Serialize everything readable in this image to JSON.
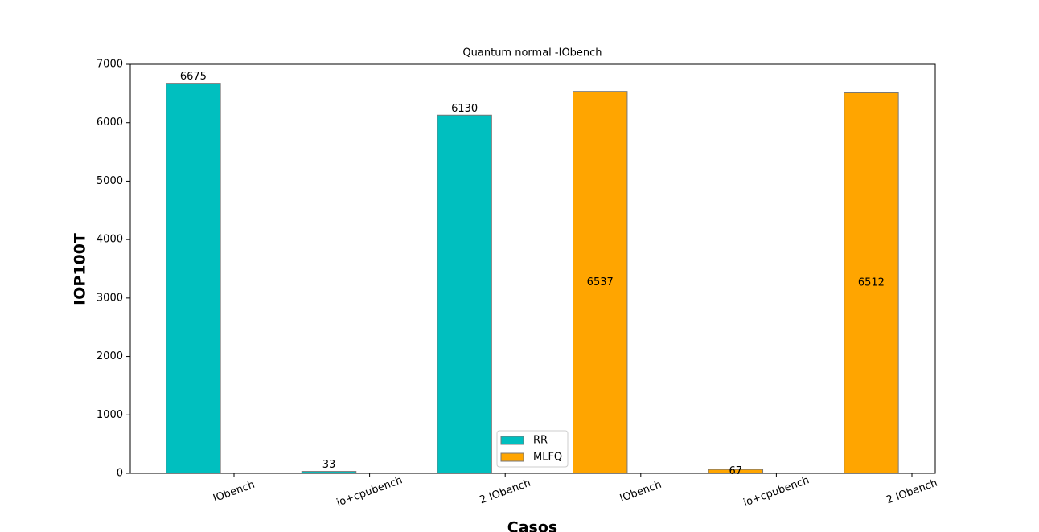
{
  "chart_data": {
    "type": "bar",
    "title": "Quantum normal -IObench",
    "xlabel": "Casos",
    "ylabel": "IOP100T",
    "categories": [
      "IObench",
      "io+cpubench",
      "2 IObench",
      "IObench",
      "io+cpubench",
      "2 IObench"
    ],
    "series": [
      {
        "name": "RR",
        "color": "#00bfbf",
        "values": [
          6675,
          33,
          6130,
          null,
          null,
          null
        ]
      },
      {
        "name": "MLFQ",
        "color": "#ffa500",
        "values": [
          null,
          null,
          null,
          6537,
          67,
          6512
        ]
      }
    ],
    "ylim": [
      0,
      7000
    ],
    "yticks": [
      0,
      1000,
      2000,
      3000,
      4000,
      5000,
      6000,
      7000
    ],
    "legend": "lower center"
  }
}
